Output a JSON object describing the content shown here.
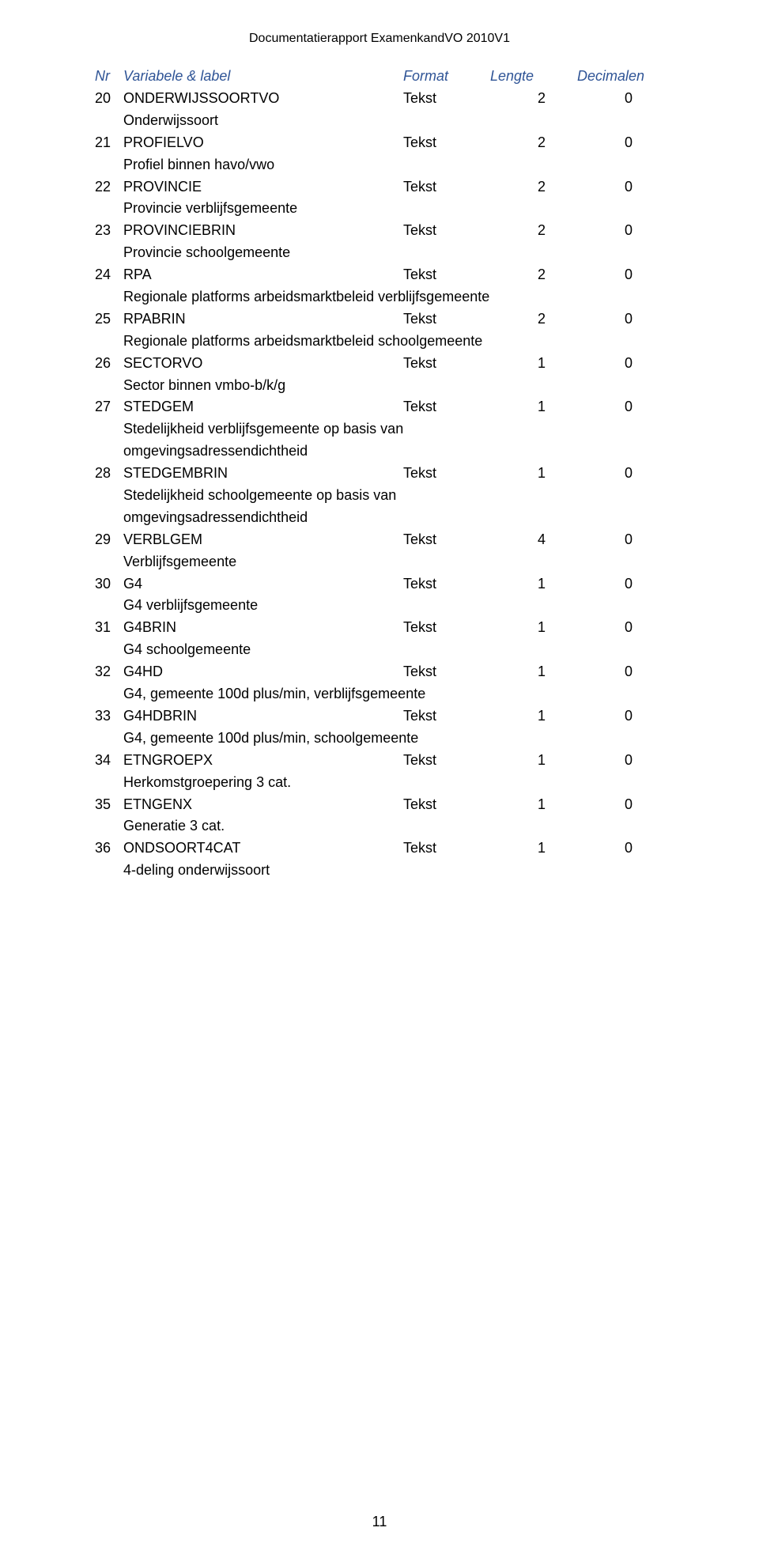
{
  "doc": {
    "header": "Documentatierapport ExamenkandVO 2010V1",
    "page_number": "11"
  },
  "columns": {
    "nr": "Nr",
    "varlabel": "Variabele & label",
    "format": "Format",
    "length": "Lengte",
    "dec": "Decimalen"
  },
  "rows": [
    {
      "nr": "20",
      "var": "ONDERWIJSSOORTVO",
      "format": "Tekst",
      "length": "2",
      "dec": "0",
      "desc": "Onderwijssoort"
    },
    {
      "nr": "21",
      "var": "PROFIELVO",
      "format": "Tekst",
      "length": "2",
      "dec": "0",
      "desc": "Profiel binnen havo/vwo"
    },
    {
      "nr": "22",
      "var": "PROVINCIE",
      "format": "Tekst",
      "length": "2",
      "dec": "0",
      "desc": "Provincie verblijfsgemeente"
    },
    {
      "nr": "23",
      "var": "PROVINCIEBRIN",
      "format": "Tekst",
      "length": "2",
      "dec": "0",
      "desc": "Provincie schoolgemeente"
    },
    {
      "nr": "24",
      "var": "RPA",
      "format": "Tekst",
      "length": "2",
      "dec": "0",
      "desc": "Regionale platforms arbeidsmarktbeleid verblijfsgemeente"
    },
    {
      "nr": "25",
      "var": "RPABRIN",
      "format": "Tekst",
      "length": "2",
      "dec": "0",
      "desc": "Regionale platforms arbeidsmarktbeleid schoolgemeente"
    },
    {
      "nr": "26",
      "var": "SECTORVO",
      "format": "Tekst",
      "length": "1",
      "dec": "0",
      "desc": "Sector binnen vmbo-b/k/g"
    },
    {
      "nr": "27",
      "var": "STEDGEM",
      "format": "Tekst",
      "length": "1",
      "dec": "0",
      "desc": "Stedelijkheid verblijfsgemeente op basis van omgevingsadressendichtheid"
    },
    {
      "nr": "28",
      "var": "STEDGEMBRIN",
      "format": "Tekst",
      "length": "1",
      "dec": "0",
      "desc": "Stedelijkheid schoolgemeente op basis van omgevingsadressendichtheid"
    },
    {
      "nr": "29",
      "var": "VERBLGEM",
      "format": "Tekst",
      "length": "4",
      "dec": "0",
      "desc": "Verblijfsgemeente"
    },
    {
      "nr": "30",
      "var": "G4",
      "format": "Tekst",
      "length": "1",
      "dec": "0",
      "desc": "G4 verblijfsgemeente"
    },
    {
      "nr": "31",
      "var": "G4BRIN",
      "format": "Tekst",
      "length": "1",
      "dec": "0",
      "desc": "G4 schoolgemeente"
    },
    {
      "nr": "32",
      "var": "G4HD",
      "format": "Tekst",
      "length": "1",
      "dec": "0",
      "desc": "G4, gemeente 100d plus/min, verblijfsgemeente"
    },
    {
      "nr": "33",
      "var": "G4HDBRIN",
      "format": "Tekst",
      "length": "1",
      "dec": "0",
      "desc": "G4, gemeente 100d plus/min, schoolgemeente"
    },
    {
      "nr": "34",
      "var": "ETNGROEPX",
      "format": "Tekst",
      "length": "1",
      "dec": "0",
      "desc": "Herkomstgroepering 3 cat."
    },
    {
      "nr": "35",
      "var": "ETNGENX",
      "format": "Tekst",
      "length": "1",
      "dec": "0",
      "desc": "Generatie 3 cat."
    },
    {
      "nr": "36",
      "var": "ONDSOORT4CAT",
      "format": "Tekst",
      "length": "1",
      "dec": "0",
      "desc": "4-deling onderwijssoort"
    }
  ],
  "style": {
    "header_color": "#2f5496",
    "text_color": "#000000",
    "background_color": "#ffffff",
    "font_size_body": 18,
    "font_size_header": 16
  }
}
